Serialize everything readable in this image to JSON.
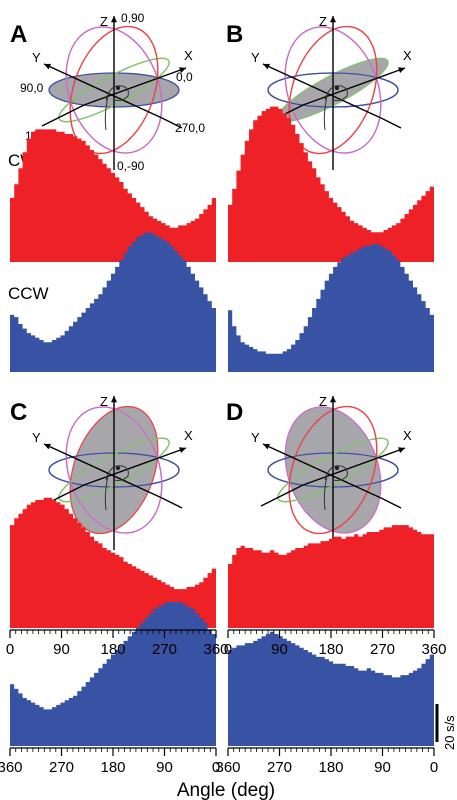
{
  "figure": {
    "panel_labels": [
      "A",
      "B",
      "C",
      "D"
    ],
    "row_labels": {
      "cw": "CW",
      "ccw": "CCW"
    },
    "axis_x_label": "Angle (deg)",
    "scale_bar_label": "20 s/s",
    "axes_labels": {
      "x": "X",
      "y": "Y",
      "z": "Z"
    },
    "coord_labels": {
      "top": "0,90",
      "left": "90,0",
      "right": "0,0",
      "lower_left": "180,0",
      "lower_right": "270,0",
      "bottom": "0,-90"
    },
    "colors": {
      "cw": "#ee2226",
      "ccw": "#3953a4",
      "plane_fill": "#a7a6ab",
      "ring_red": "#e8474a",
      "ring_magenta": "#c86ec8",
      "ring_green": "#82c46a",
      "ring_blue": "#3f4fa3"
    }
  },
  "chart_data": [
    {
      "type": "bar",
      "panel": "A",
      "series": "CW",
      "x_ticks": [
        "0",
        "90",
        "180",
        "270",
        "360"
      ],
      "values": [
        28,
        34,
        41,
        48,
        54,
        57,
        58,
        58,
        58,
        58,
        58,
        57,
        57,
        56,
        56,
        55,
        54,
        53,
        51,
        49,
        47,
        45,
        43,
        41,
        39,
        37,
        35,
        32,
        30,
        28,
        26,
        24,
        22,
        20,
        19,
        18,
        17,
        16,
        15,
        15,
        16,
        16,
        17,
        18,
        19,
        21,
        23,
        25,
        28
      ]
    },
    {
      "type": "bar",
      "panel": "B",
      "series": "CW",
      "x_ticks": [
        "0",
        "90",
        "180",
        "270",
        "360"
      ],
      "values": [
        25,
        32,
        40,
        47,
        53,
        58,
        62,
        64,
        66,
        67,
        68,
        68,
        67,
        65,
        63,
        60,
        56,
        52,
        48,
        44,
        41,
        37,
        34,
        31,
        28,
        26,
        24,
        22,
        20,
        18,
        17,
        16,
        15,
        14,
        13,
        13,
        13,
        14,
        15,
        16,
        17,
        19,
        21,
        23,
        25,
        27,
        29,
        31,
        33
      ]
    },
    {
      "type": "bar",
      "panel": "A",
      "series": "CCW",
      "x_ticks": [
        "360",
        "270",
        "180",
        "90",
        "0"
      ],
      "values": [
        25,
        24,
        21,
        19,
        17,
        16,
        15,
        14,
        13,
        13,
        14,
        15,
        16,
        18,
        20,
        22,
        24,
        26,
        28,
        30,
        32,
        34,
        37,
        40,
        43,
        46,
        49,
        52,
        55,
        57,
        59,
        60,
        61,
        61,
        60,
        59,
        58,
        57,
        55,
        53,
        51,
        49,
        46,
        43,
        40,
        37,
        34,
        31,
        28
      ]
    },
    {
      "type": "bar",
      "panel": "B",
      "series": "CCW",
      "x_ticks": [
        "360",
        "270",
        "180",
        "90",
        "0"
      ],
      "values": [
        27,
        20,
        16,
        13,
        12,
        11,
        10,
        9,
        9,
        8,
        8,
        8,
        8,
        9,
        10,
        12,
        14,
        17,
        20,
        24,
        28,
        32,
        36,
        40,
        43,
        46,
        48,
        50,
        51,
        52,
        53,
        54,
        55,
        55,
        56,
        56,
        55,
        54,
        53,
        51,
        49,
        46,
        43,
        40,
        37,
        34,
        31,
        28,
        25
      ]
    },
    {
      "type": "bar",
      "panel": "C",
      "series": "CW",
      "x_ticks": [
        "0",
        "90",
        "180",
        "270",
        "360"
      ],
      "values": [
        45,
        48,
        50,
        52,
        54,
        55,
        56,
        56,
        57,
        57,
        56,
        55,
        54,
        52,
        50,
        48,
        46,
        44,
        42,
        40,
        38,
        37,
        35,
        34,
        33,
        32,
        31,
        29,
        28,
        27,
        26,
        25,
        24,
        23,
        22,
        21,
        20,
        19,
        18,
        17,
        17,
        17,
        18,
        18,
        19,
        20,
        22,
        24,
        26
      ]
    },
    {
      "type": "bar",
      "panel": "D",
      "series": "CW",
      "x_ticks": [
        "0",
        "90",
        "180",
        "270",
        "360"
      ],
      "values": [
        28,
        32,
        35,
        36,
        35,
        35,
        34,
        34,
        33,
        33,
        34,
        33,
        32,
        32,
        33,
        34,
        35,
        35,
        36,
        37,
        37,
        37,
        38,
        38,
        39,
        40,
        40,
        39,
        40,
        40,
        41,
        40,
        41,
        42,
        42,
        42,
        43,
        44,
        44,
        45,
        45,
        45,
        45,
        44,
        43,
        42,
        41,
        41,
        41
      ]
    },
    {
      "type": "bar",
      "panel": "C",
      "series": "CCW",
      "x_ticks": [
        "360",
        "270",
        "180",
        "90",
        "0"
      ],
      "values": [
        27,
        25,
        23,
        21,
        20,
        19,
        18,
        17,
        16,
        16,
        17,
        18,
        19,
        20,
        21,
        22,
        24,
        26,
        28,
        30,
        32,
        34,
        36,
        38,
        40,
        42,
        44,
        46,
        48,
        50,
        52,
        54,
        56,
        58,
        60,
        61,
        62,
        63,
        63,
        63,
        63,
        62,
        61,
        60,
        58,
        56,
        54,
        51,
        49
      ]
    },
    {
      "type": "bar",
      "panel": "D",
      "series": "CCW",
      "x_ticks": [
        "360",
        "270",
        "180",
        "90",
        "0"
      ],
      "values": [
        42,
        43,
        44,
        44,
        45,
        45,
        46,
        47,
        48,
        49,
        50,
        49,
        48,
        47,
        46,
        45,
        44,
        43,
        42,
        41,
        40,
        39,
        39,
        38,
        37,
        36,
        36,
        36,
        35,
        35,
        34,
        33,
        33,
        34,
        33,
        32,
        32,
        31,
        31,
        30,
        30,
        31,
        31,
        32,
        33,
        34,
        36,
        38,
        40
      ]
    }
  ]
}
